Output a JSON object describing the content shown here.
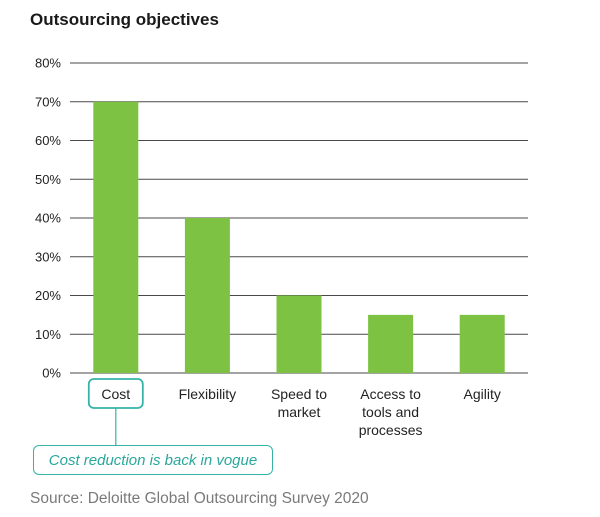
{
  "chart_data": {
    "type": "bar",
    "title": "Outsourcing objectives",
    "categories": [
      "Cost",
      "Flexibility",
      "Speed to\nmarket",
      "Access to\ntools and\nprocesses",
      "Agility"
    ],
    "values": [
      70,
      40,
      20,
      15,
      15
    ],
    "ylim": [
      0,
      80
    ],
    "yticks": [
      "0%",
      "10%",
      "20%",
      "30%",
      "40%",
      "50%",
      "60%",
      "70%",
      "80%"
    ],
    "highlighted_category": "Cost",
    "annotation": "Cost reduction is back in vogue",
    "grid": true,
    "bar_color": "#7dc242",
    "accent_color": "#35b3a8"
  },
  "source_note": "Source: Deloitte Global Outsourcing Survey 2020"
}
